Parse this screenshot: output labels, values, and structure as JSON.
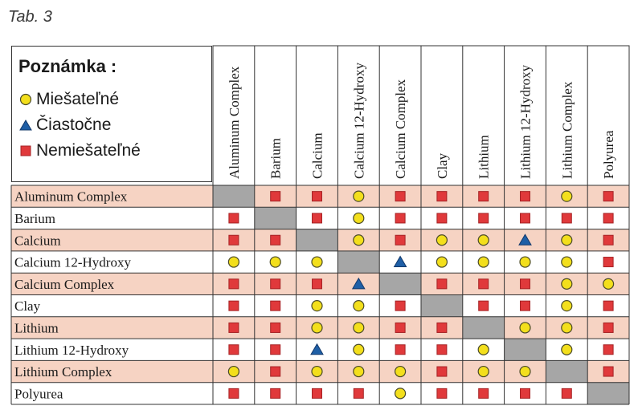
{
  "caption": "Tab. 3",
  "legend": {
    "title": "Poznámka :",
    "items": [
      {
        "symbol": "circle",
        "label": "Miešateľné"
      },
      {
        "symbol": "triangle",
        "label": "Čiastočne"
      },
      {
        "symbol": "square",
        "label": "Nemiešateľné"
      }
    ]
  },
  "colors": {
    "shaded_row": "#f6d3c3",
    "diagonal": "#a6a6a6",
    "circle": "#f3df1c",
    "triangle": "#1f5fa6",
    "square": "#e0393b"
  },
  "columns": [
    "Aluminum Complex",
    "Barium",
    "Calcium",
    "Calcium 12-Hydroxy",
    "Calcium Complex",
    "Clay",
    "Lithium",
    "Lithium 12-Hydroxy",
    "Lithium Complex",
    "Polyurea"
  ],
  "rows": [
    {
      "label": "Aluminum Complex",
      "cells": [
        "-",
        "S",
        "S",
        "C",
        "S",
        "S",
        "S",
        "S",
        "C",
        "S"
      ]
    },
    {
      "label": "Barium",
      "cells": [
        "S",
        "-",
        "S",
        "C",
        "S",
        "S",
        "S",
        "S",
        "S",
        "S"
      ]
    },
    {
      "label": "Calcium",
      "cells": [
        "S",
        "S",
        "-",
        "C",
        "S",
        "C",
        "C",
        "T",
        "C",
        "S"
      ]
    },
    {
      "label": "Calcium 12-Hydroxy",
      "cells": [
        "C",
        "C",
        "C",
        "-",
        "T",
        "C",
        "C",
        "C",
        "C",
        "S"
      ]
    },
    {
      "label": "Calcium Complex",
      "cells": [
        "S",
        "S",
        "S",
        "T",
        "-",
        "S",
        "S",
        "S",
        "C",
        "C"
      ]
    },
    {
      "label": "Clay",
      "cells": [
        "S",
        "S",
        "C",
        "C",
        "S",
        "-",
        "S",
        "S",
        "C",
        "S"
      ]
    },
    {
      "label": "Lithium",
      "cells": [
        "S",
        "S",
        "C",
        "C",
        "S",
        "S",
        "-",
        "C",
        "C",
        "S"
      ]
    },
    {
      "label": "Lithium 12-Hydroxy",
      "cells": [
        "S",
        "S",
        "T",
        "C",
        "S",
        "S",
        "C",
        "-",
        "C",
        "S"
      ]
    },
    {
      "label": "Lithium Complex",
      "cells": [
        "C",
        "S",
        "C",
        "C",
        "C",
        "S",
        "C",
        "C",
        "-",
        "S"
      ]
    },
    {
      "label": "Polyurea",
      "cells": [
        "S",
        "S",
        "S",
        "S",
        "C",
        "S",
        "S",
        "S",
        "S",
        "-"
      ]
    }
  ]
}
